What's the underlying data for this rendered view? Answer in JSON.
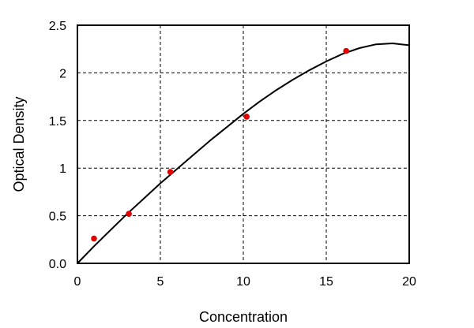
{
  "chart_data": {
    "type": "scatter",
    "title": "",
    "xlabel": "Concentration",
    "ylabel": "Optical Density",
    "xlim": [
      0,
      20
    ],
    "ylim": [
      0,
      2.5
    ],
    "x_ticks": [
      0,
      5,
      10,
      15,
      20
    ],
    "x_tick_labels": [
      "0",
      "5",
      "10",
      "15",
      "20"
    ],
    "y_ticks": [
      0,
      0.5,
      1,
      1.5,
      2,
      2.5
    ],
    "y_tick_labels": [
      "0.0",
      "0.5",
      "1",
      "1.5",
      "2",
      "2.5"
    ],
    "grid": true,
    "grid_style": "dashed",
    "legend": "none",
    "points": {
      "color": "#e00000",
      "x": [
        1.0,
        3.1,
        5.6,
        10.2,
        16.2
      ],
      "y": [
        0.26,
        0.52,
        0.96,
        1.54,
        2.23
      ]
    },
    "fit_curve": {
      "color": "#000000",
      "x": [
        0,
        1,
        2,
        3,
        4,
        5,
        6,
        7,
        8,
        9,
        10,
        11,
        12,
        13,
        14,
        15,
        16,
        17,
        18,
        19,
        20
      ],
      "y": [
        0.0,
        0.18,
        0.35,
        0.52,
        0.68,
        0.84,
        0.99,
        1.14,
        1.29,
        1.43,
        1.57,
        1.7,
        1.82,
        1.93,
        2.03,
        2.12,
        2.2,
        2.26,
        2.3,
        2.31,
        2.29
      ]
    }
  }
}
